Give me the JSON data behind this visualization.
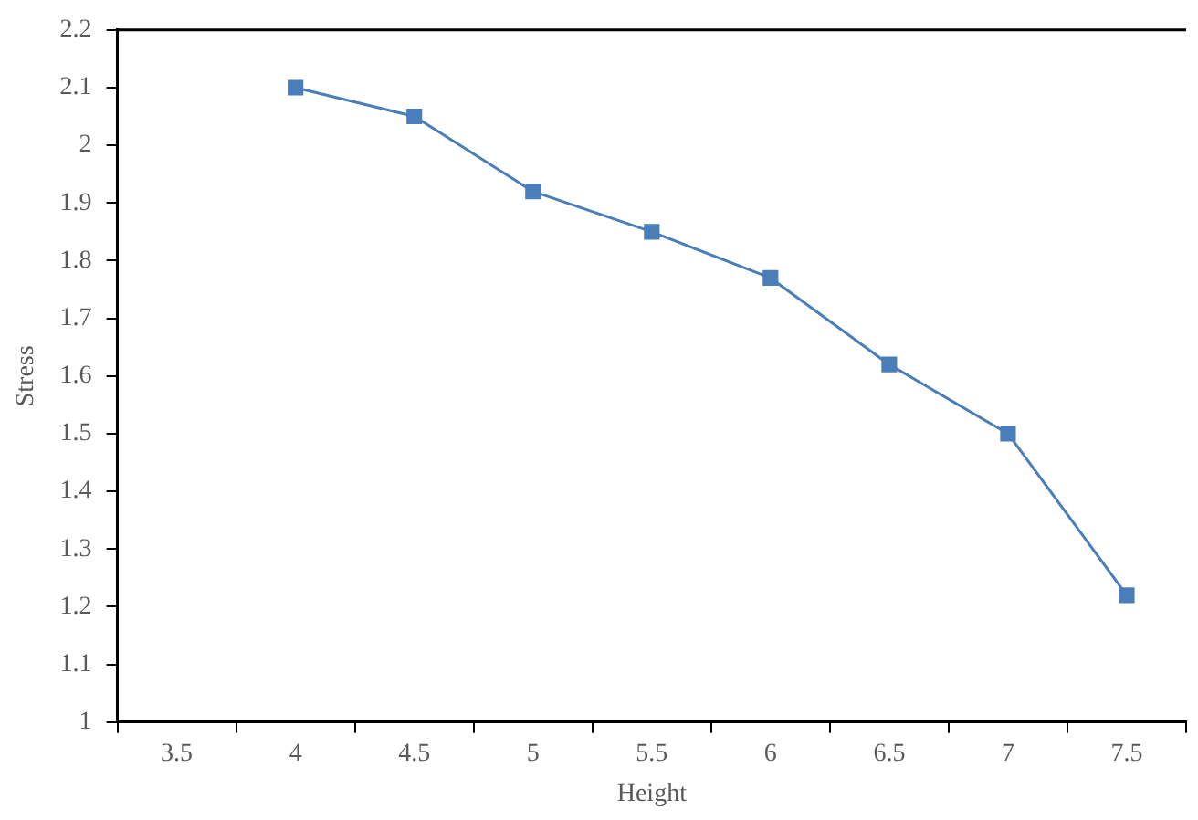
{
  "chart_data": {
    "type": "line",
    "xlabel": "Height",
    "ylabel": "Stress",
    "categories": [
      "3.5",
      "4",
      "4.5",
      "5",
      "5.5",
      "6",
      "6.5",
      "7",
      "7.5"
    ],
    "series": [
      {
        "color": "#4a7ebb",
        "values": [
          null,
          2.1,
          2.05,
          1.92,
          1.85,
          1.77,
          1.62,
          1.5,
          1.22
        ]
      }
    ],
    "ylim": [
      1,
      2.2
    ],
    "yticks": [
      1,
      1.1,
      1.2,
      1.3,
      1.4,
      1.5,
      1.6,
      1.7,
      1.8,
      1.9,
      2,
      2.1,
      2.2
    ],
    "grid": false,
    "legend": false,
    "marker": "square",
    "line_style": "solid"
  }
}
